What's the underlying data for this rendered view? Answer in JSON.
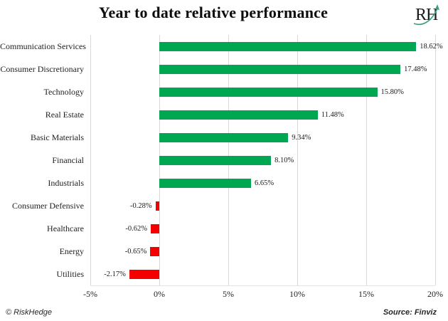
{
  "header": {
    "title": "Year to date relative performance",
    "logo_text": "RH"
  },
  "chart_data": {
    "type": "bar",
    "orientation": "horizontal",
    "title": "Year to date relative performance",
    "categories": [
      "Communication Services",
      "Consumer Discretionary",
      "Technology",
      "Real Estate",
      "Basic Materials",
      "Financial",
      "Industrials",
      "Consumer Defensive",
      "Healthcare",
      "Energy",
      "Utilities"
    ],
    "values": [
      18.62,
      17.48,
      15.8,
      11.48,
      9.34,
      8.1,
      6.65,
      -0.28,
      -0.62,
      -0.65,
      -2.17
    ],
    "value_labels": [
      "18.62%",
      "17.48%",
      "15.80%",
      "11.48%",
      "9.34%",
      "8.10%",
      "6.65%",
      "-0.28%",
      "-0.62%",
      "-0.65%",
      "-2.17%"
    ],
    "x_ticks": [
      "-5%",
      "0%",
      "5%",
      "10%",
      "15%",
      "20%"
    ],
    "x_tick_values": [
      -5,
      0,
      5,
      10,
      15,
      20
    ],
    "xlim": [
      -5,
      20
    ],
    "xlabel": "",
    "ylabel": "",
    "legend": "none",
    "grid": "vertical",
    "positive_color": "#00a651",
    "negative_color": "#f40000",
    "gridline_color": "#d9d9d9",
    "logo_arrow_color": "#3e9e7c"
  },
  "footer": {
    "copyright": "© RiskHedge",
    "source": "Source: Finviz"
  }
}
